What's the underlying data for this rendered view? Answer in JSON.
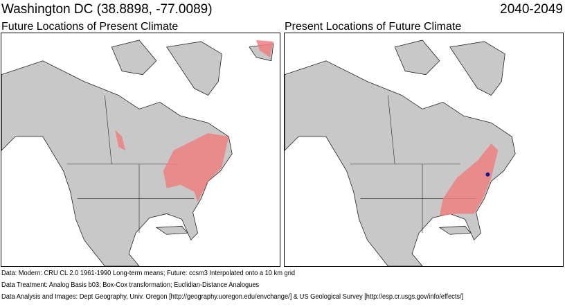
{
  "header": {
    "location": "Washington DC  (38.8898, -77.0089)",
    "period": "2040-2049"
  },
  "panels": [
    {
      "title": "Future Locations of Present Climate",
      "highlight_color": "#f08080"
    },
    {
      "title": "Present Locations of Future Climate",
      "highlight_color": "#f08080",
      "marker_color": "#1a1a8c"
    }
  ],
  "footer": {
    "data": "Data:  Modern: CRU CL 2.0 1961-1990 Long-term means; Future: ccsm3 Interpolated onto a 10 km grid",
    "treatment": "Data Treatment:  Analog Basis b03; Box-Cox transformation; Euclidian-Distance Analogues",
    "credits": "Data Analysis and Images:  Dept Geography, Univ. Oregon [http://geography.uoregon.edu/envchange/] & US Geological Survey [http://esp.cr.usgs.gov/info/effects/]"
  }
}
